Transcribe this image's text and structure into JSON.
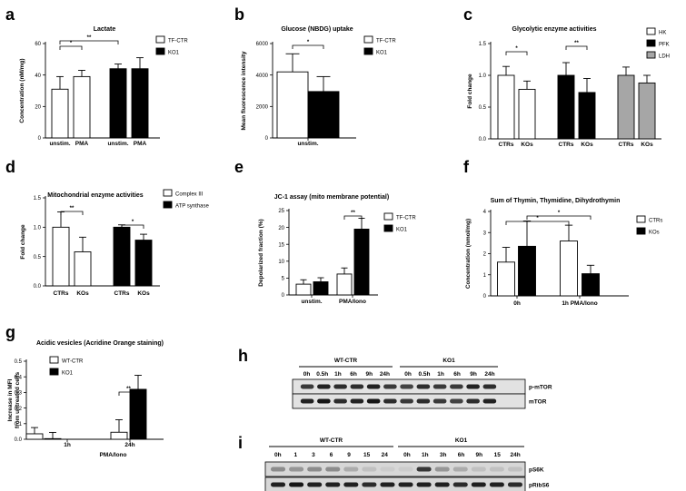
{
  "panels": [
    {
      "letter": "a",
      "chart": 0
    },
    {
      "letter": "b",
      "chart": 1
    },
    {
      "letter": "c",
      "chart": 2
    },
    {
      "letter": "d",
      "chart": 3
    },
    {
      "letter": "e",
      "chart": 4
    },
    {
      "letter": "f",
      "chart": 5
    },
    {
      "letter": "g",
      "chart": 6
    },
    {
      "letter": "h"
    },
    {
      "letter": "i"
    }
  ],
  "chart_data": [
    {
      "type": "bar",
      "title": "Lactate",
      "ylabel": "Concentration (nM/mg)",
      "ylim": [
        0,
        60
      ],
      "yticks": [
        0,
        20,
        40,
        60
      ],
      "legend": [
        {
          "name": "TF-CTR",
          "fill": "white"
        },
        {
          "name": "KO1",
          "fill": "black"
        }
      ],
      "bars": [
        {
          "label": "unstim.",
          "value": 31,
          "err": 8,
          "fill": "white"
        },
        {
          "label": "PMA",
          "value": 39,
          "err": 4,
          "fill": "white"
        },
        {
          "label": "unstim.",
          "value": 44,
          "err": 3,
          "fill": "black"
        },
        {
          "label": "PMA",
          "value": 44,
          "err": 7,
          "fill": "black"
        }
      ],
      "sig": [
        {
          "from": 0,
          "to": 1,
          "label": "*"
        },
        {
          "from": 0,
          "to": 2,
          "label": "**"
        }
      ]
    },
    {
      "type": "bar",
      "title": "Glucose (NBDG) uptake",
      "ylabel": "Mean fluorescence intensity",
      "ylim": [
        0,
        6000
      ],
      "yticks": [
        0,
        2000,
        4000,
        6000
      ],
      "legend": [
        {
          "name": "TF-CTR",
          "fill": "white"
        },
        {
          "name": "KO1",
          "fill": "black"
        }
      ],
      "bars": [
        {
          "label": "",
          "value": 4200,
          "err": 1150,
          "fill": "white"
        },
        {
          "label": "",
          "value": 2950,
          "err": 950,
          "fill": "black"
        }
      ],
      "group_labels": [
        "unstim."
      ],
      "sig": [
        {
          "from": 0,
          "to": 1,
          "label": "*"
        }
      ]
    },
    {
      "type": "bar",
      "title": "Glycolytic enzyme activities",
      "ylabel": "Fold change",
      "ylim": [
        0,
        1.5
      ],
      "yticks": [
        0.0,
        0.5,
        1.0,
        1.5
      ],
      "legend": [
        {
          "name": "HK",
          "fill": "white"
        },
        {
          "name": "PFK",
          "fill": "black"
        },
        {
          "name": "LDH",
          "fill": "gray"
        }
      ],
      "bars": [
        {
          "label": "CTRs",
          "value": 1.0,
          "err": 0.14,
          "fill": "white"
        },
        {
          "label": "KOs",
          "value": 0.78,
          "err": 0.13,
          "fill": "white"
        },
        {
          "label": "CTRs",
          "value": 1.0,
          "err": 0.2,
          "fill": "black"
        },
        {
          "label": "KOs",
          "value": 0.73,
          "err": 0.22,
          "fill": "black"
        },
        {
          "label": "CTRs",
          "value": 1.0,
          "err": 0.13,
          "fill": "gray"
        },
        {
          "label": "KOs",
          "value": 0.88,
          "err": 0.12,
          "fill": "gray"
        }
      ],
      "sig": [
        {
          "from": 0,
          "to": 1,
          "label": "*"
        },
        {
          "from": 2,
          "to": 3,
          "label": "**"
        }
      ]
    },
    {
      "type": "bar",
      "title": "Mitochondrial enzyme activities",
      "ylabel": "Fold change",
      "ylim": [
        0,
        1.5
      ],
      "yticks": [
        0.0,
        0.5,
        1.0,
        1.5
      ],
      "legend": [
        {
          "name": "Complex III",
          "fill": "white"
        },
        {
          "name": "ATP synthase",
          "fill": "black"
        }
      ],
      "bars": [
        {
          "label": "CTRs",
          "value": 1.0,
          "err": 0.26,
          "fill": "white"
        },
        {
          "label": "KOs",
          "value": 0.58,
          "err": 0.25,
          "fill": "white"
        },
        {
          "label": "CTRs",
          "value": 1.0,
          "err": 0.04,
          "fill": "black"
        },
        {
          "label": "KOs",
          "value": 0.78,
          "err": 0.1,
          "fill": "black"
        }
      ],
      "sig": [
        {
          "from": 0,
          "to": 1,
          "label": "**"
        },
        {
          "from": 2,
          "to": 3,
          "label": "*"
        }
      ]
    },
    {
      "type": "bar",
      "title": "JC-1 assay (mito membrane potential)",
      "ylabel": "Depolarized fraction (%)",
      "ylim": [
        0,
        25
      ],
      "yticks": [
        0,
        5,
        10,
        15,
        20,
        25
      ],
      "legend": [
        {
          "name": "TF-CTR",
          "fill": "white"
        },
        {
          "name": "KO1",
          "fill": "black"
        }
      ],
      "bars": [
        {
          "label": "",
          "value": 3.2,
          "err": 1.3,
          "fill": "white"
        },
        {
          "label": "",
          "value": 3.9,
          "err": 1.2,
          "fill": "black"
        },
        {
          "label": "",
          "value": 6.2,
          "err": 1.8,
          "fill": "white"
        },
        {
          "label": "",
          "value": 19.5,
          "err": 3.2,
          "fill": "black"
        }
      ],
      "group_labels": [
        "unstim.",
        "PMA/Iono"
      ],
      "sig": [
        {
          "from": 2,
          "to": 3,
          "label": "**"
        }
      ]
    },
    {
      "type": "bar",
      "title": "Sum of Thymin, Thymidine, Dihydrothymin",
      "ylabel": "Concentration  (nmol/mg)",
      "ylim": [
        0,
        4
      ],
      "yticks": [
        0,
        1,
        2,
        3,
        4
      ],
      "legend": [
        {
          "name": "CTRs",
          "fill": "white"
        },
        {
          "name": "KOs",
          "fill": "black"
        }
      ],
      "bars": [
        {
          "label": "",
          "value": 1.6,
          "err": 0.7,
          "fill": "white"
        },
        {
          "label": "",
          "value": 2.35,
          "err": 1.2,
          "fill": "black"
        },
        {
          "label": "",
          "value": 2.6,
          "err": 0.75,
          "fill": "white"
        },
        {
          "label": "",
          "value": 1.05,
          "err": 0.4,
          "fill": "black"
        }
      ],
      "group_labels": [
        "0h",
        "1h PMA/Iono"
      ],
      "sig": [
        {
          "from": 0,
          "to": 2,
          "label": "*"
        },
        {
          "from": 1,
          "to": 3,
          "label": "*"
        }
      ]
    },
    {
      "type": "bar",
      "title": "Acidic vesicles (Acridine Orange staining)",
      "ylabel": "Increase in MFI from untreated cells",
      "xlabel": "PMA/Iono",
      "ylim": [
        0,
        0.5
      ],
      "yticks": [
        0.0,
        0.1,
        0.2,
        0.3,
        0.4,
        0.5
      ],
      "legend": [
        {
          "name": "WT-CTR",
          "fill": "white"
        },
        {
          "name": "KO1",
          "fill": "black"
        }
      ],
      "bars": [
        {
          "label": "",
          "value": 0.035,
          "err": 0.04,
          "fill": "white"
        },
        {
          "label": "",
          "value": 0.004,
          "err": 0.04,
          "fill": "black"
        },
        {
          "label": "",
          "value": 0.045,
          "err": 0.08,
          "fill": "white"
        },
        {
          "label": "",
          "value": 0.32,
          "err": 0.09,
          "fill": "black"
        }
      ],
      "group_labels": [
        "1h",
        "24h"
      ],
      "sig": [
        {
          "from": 2,
          "to": 3,
          "label": "**"
        }
      ]
    }
  ],
  "blots": {
    "h": {
      "groups": [
        "WT-CTR",
        "KO1"
      ],
      "lanes": [
        [
          "0h",
          "0.5h",
          "1h",
          "6h",
          "9h",
          "24h"
        ],
        [
          "0h",
          "0.5h",
          "1h",
          "6h",
          "9h",
          "24h"
        ]
      ],
      "rows": [
        "p-mTOR",
        "mTOR"
      ]
    },
    "i": {
      "groups": [
        "WT-CTR",
        "KO1"
      ],
      "lanes": [
        [
          "0h",
          "1",
          "3",
          "6",
          "9",
          "15",
          "24"
        ],
        [
          "0h",
          "1h",
          "3h",
          "6h",
          "9h",
          "15",
          "24h"
        ]
      ],
      "rows": [
        "pS6K",
        "pRibS6"
      ]
    }
  }
}
